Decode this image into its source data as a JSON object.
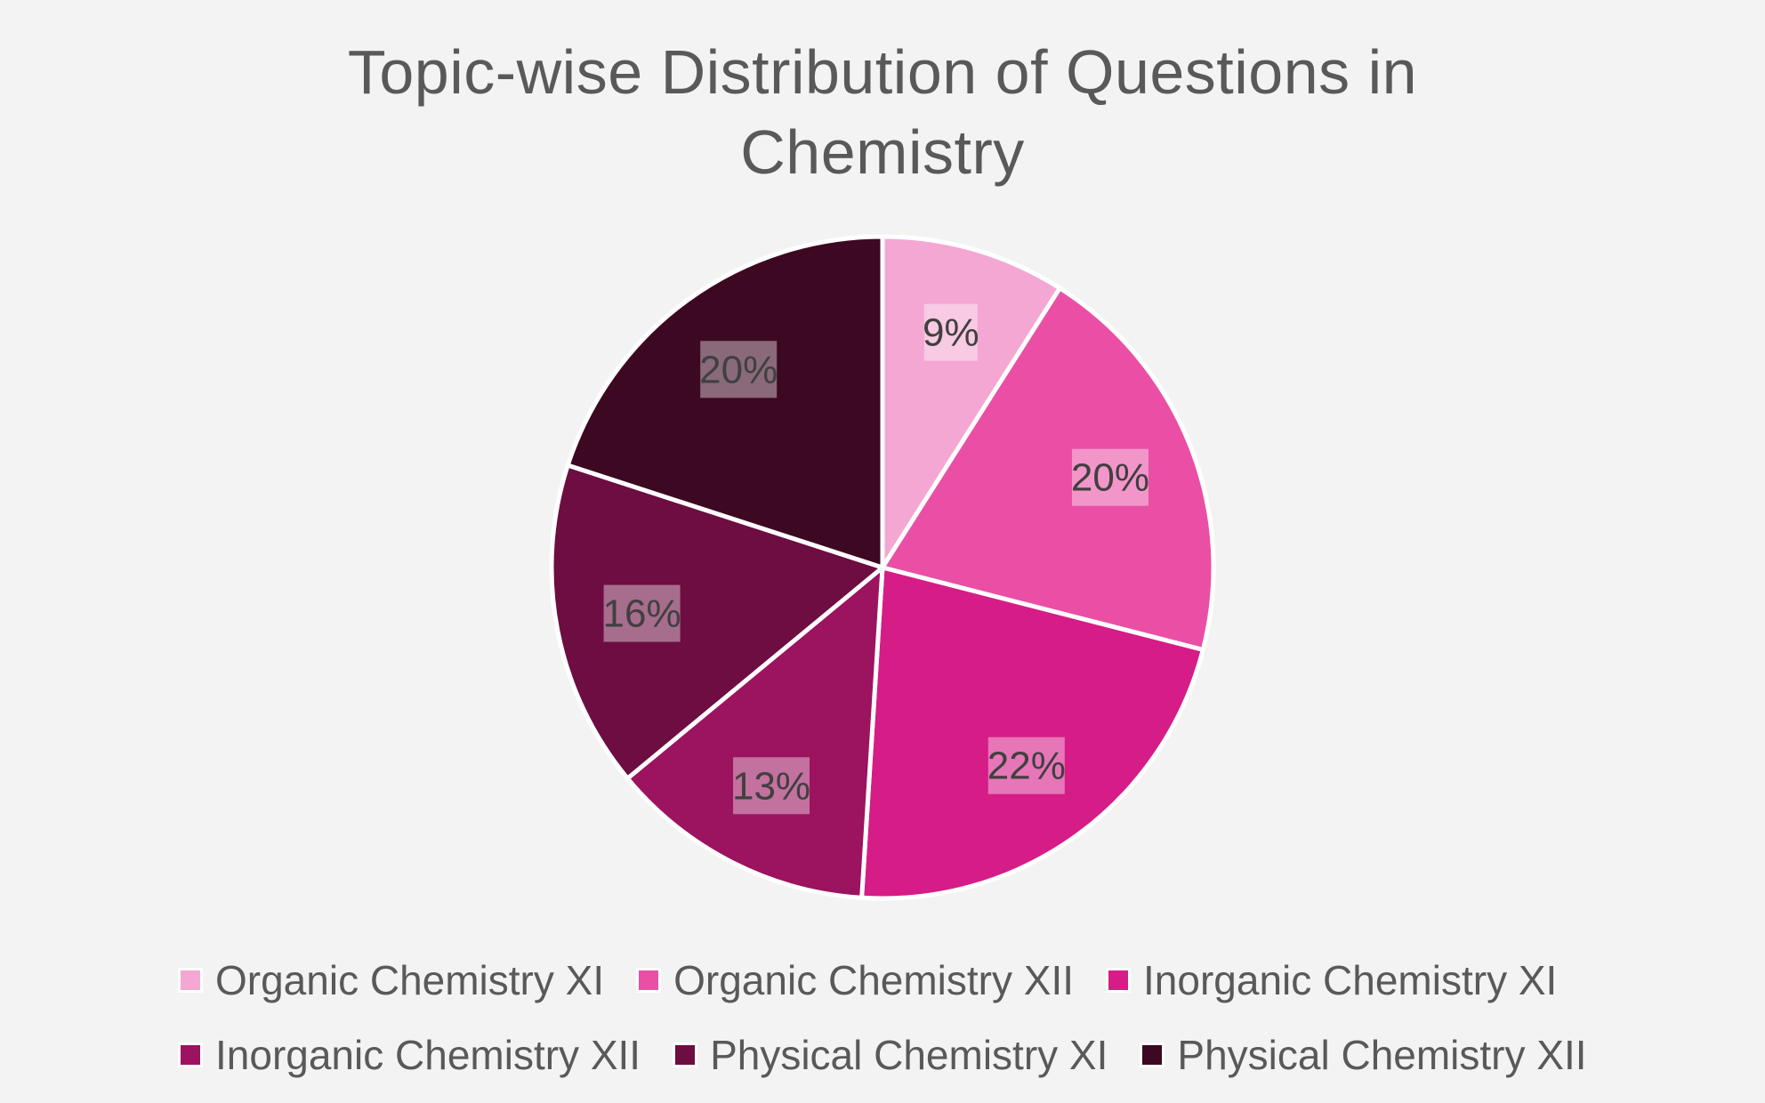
{
  "chart_data": {
    "type": "pie",
    "title": "Topic-wise Distribution of Questions in\nChemistry",
    "categories": [
      "Organic Chemistry XI",
      "Organic Chemistry XII",
      "Inorganic Chemistry XI",
      "Inorganic Chemistry XII",
      "Physical Chemistry XI",
      "Physical Chemistry XII"
    ],
    "values": [
      9,
      20,
      22,
      13,
      16,
      20
    ],
    "data_labels": [
      "9%",
      "20%",
      "22%",
      "13%",
      "16%",
      "20%"
    ],
    "colors": [
      "#f4a7d2",
      "#ea4fa5",
      "#d61c87",
      "#9c135f",
      "#6d0d42",
      "#3d0822"
    ],
    "legend_placement": "bottom"
  }
}
